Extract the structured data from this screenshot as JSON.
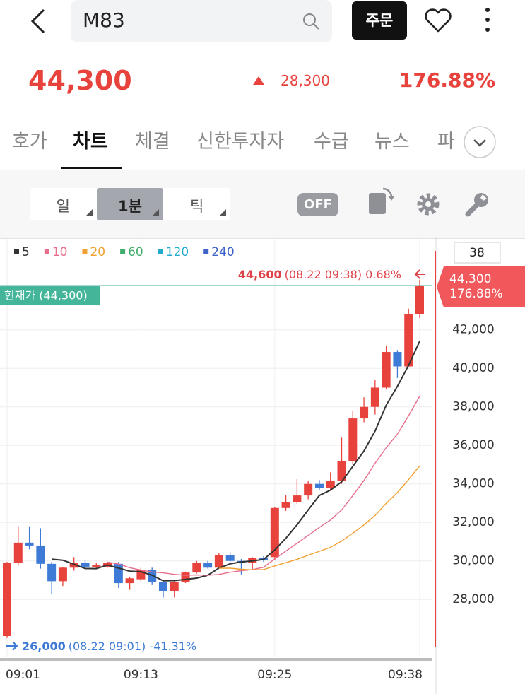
{
  "header": {
    "search": "M83",
    "order_button": "주문"
  },
  "quote": {
    "price": "44,300",
    "change": "28,300",
    "change_pct": "176.88%"
  },
  "tabs": [
    {
      "label": "호가"
    },
    {
      "label": "차트",
      "active": true
    },
    {
      "label": "체결"
    },
    {
      "label": "신한투자자"
    },
    {
      "label": "수급"
    },
    {
      "label": "뉴스"
    },
    {
      "label": "파"
    }
  ],
  "periods": [
    {
      "label": "일"
    },
    {
      "label": "1분",
      "active": true
    },
    {
      "label": "틱"
    }
  ],
  "indicator_toggle": "OFF",
  "chart_data": {
    "type": "candlestick",
    "categories": [
      "09:01",
      null,
      null,
      null,
      null,
      null,
      null,
      null,
      null,
      null,
      null,
      null,
      "09:13",
      null,
      null,
      null,
      null,
      null,
      null,
      null,
      null,
      null,
      null,
      null,
      "09:25",
      null,
      null,
      null,
      null,
      null,
      null,
      null,
      null,
      null,
      null,
      null,
      null,
      "09:38"
    ],
    "candles": {
      "open": [
        26100,
        29900,
        30950,
        30800,
        29850,
        28950,
        29650,
        29900,
        29700,
        29700,
        29850,
        28850,
        29050,
        29550,
        28900,
        28450,
        28900,
        29400,
        29900,
        29650,
        30300,
        30000,
        29900,
        30150,
        30200,
        32750,
        33050,
        33400,
        34000,
        33800,
        34150,
        35200,
        37400,
        38000,
        39000,
        40850,
        40100,
        42800
      ],
      "high": [
        29950,
        31800,
        31800,
        31700,
        29950,
        29700,
        30200,
        30050,
        29900,
        29950,
        29950,
        29150,
        29650,
        29650,
        28950,
        28950,
        29450,
        30000,
        30000,
        30400,
        30450,
        30100,
        30200,
        30250,
        32800,
        33400,
        34250,
        34150,
        34200,
        34600,
        36400,
        37800,
        38500,
        39400,
        41150,
        40950,
        43100,
        44600
      ],
      "low": [
        26000,
        29750,
        30600,
        29600,
        28300,
        28700,
        29500,
        29550,
        29600,
        29650,
        28600,
        28500,
        28950,
        28750,
        28100,
        28100,
        28850,
        29350,
        29600,
        29600,
        29950,
        29300,
        29550,
        29950,
        30050,
        32600,
        32950,
        33200,
        33700,
        33700,
        34000,
        35000,
        37200,
        37600,
        38900,
        39500,
        40050,
        42600
      ],
      "close": [
        29900,
        30950,
        30800,
        29850,
        28950,
        29650,
        29900,
        29700,
        29800,
        29900,
        28850,
        29100,
        29550,
        28900,
        28450,
        28900,
        29400,
        29900,
        29650,
        30300,
        30000,
        29900,
        30150,
        30050,
        32750,
        33050,
        33400,
        34000,
        33800,
        34150,
        35200,
        37400,
        38000,
        39000,
        40850,
        40100,
        42800,
        44300
      ]
    },
    "up_color": "#e8423c",
    "down_color": "#3d7bd6",
    "series": [
      {
        "name": "5",
        "color": "#333333",
        "values": [
          null,
          null,
          null,
          null,
          30090,
          30040,
          29830,
          29610,
          29600,
          29790,
          29630,
          29470,
          29440,
          29260,
          28970,
          28980,
          29040,
          29110,
          29260,
          29630,
          29850,
          29950,
          30000,
          30080,
          30570,
          31180,
          31880,
          32650,
          33400,
          33680,
          34110,
          34910,
          35710,
          36750,
          38090,
          39070,
          40150,
          41410
        ]
      },
      {
        "name": "10",
        "color": "#e86f8c",
        "values": [
          null,
          null,
          null,
          null,
          null,
          null,
          null,
          null,
          null,
          29940,
          29835,
          29650,
          29525,
          29430,
          29380,
          29305,
          29255,
          29275,
          29260,
          29300,
          29415,
          29495,
          29555,
          29670,
          30100,
          30515,
          30915,
          31325,
          31740,
          32125,
          32645,
          33395,
          34180,
          35075,
          35885,
          36590,
          37530,
          38560
        ]
      },
      {
        "name": "20",
        "color": "#f0a030",
        "values": [
          null,
          null,
          null,
          null,
          null,
          null,
          null,
          null,
          null,
          null,
          null,
          null,
          null,
          null,
          null,
          null,
          null,
          null,
          null,
          29620,
          29625,
          29570,
          29540,
          29550,
          29740,
          29910,
          30085,
          30300,
          30500,
          30710,
          31030,
          31445,
          31870,
          32370,
          32990,
          33550,
          34220,
          34940
        ]
      },
      {
        "name": "60",
        "color": "#3fae6a",
        "values": [
          null,
          null,
          null,
          null,
          null,
          null,
          null,
          null,
          null,
          null,
          null,
          null,
          null,
          null,
          null,
          null,
          null,
          null,
          null,
          null,
          null,
          null,
          null,
          null,
          null,
          null,
          null,
          null,
          null,
          null,
          null,
          null,
          null,
          null,
          null,
          null,
          null,
          null
        ]
      },
      {
        "name": "120",
        "color": "#22aacc",
        "values": [
          null,
          null,
          null,
          null,
          null,
          null,
          null,
          null,
          null,
          null,
          null,
          null,
          null,
          null,
          null,
          null,
          null,
          null,
          null,
          null,
          null,
          null,
          null,
          null,
          null,
          null,
          null,
          null,
          null,
          null,
          null,
          null,
          null,
          null,
          null,
          null,
          null,
          null
        ]
      },
      {
        "name": "240",
        "color": "#3f62c8",
        "values": [
          null,
          null,
          null,
          null,
          null,
          null,
          null,
          null,
          null,
          null,
          null,
          null,
          null,
          null,
          null,
          null,
          null,
          null,
          null,
          null,
          null,
          null,
          null,
          null,
          null,
          null,
          null,
          null,
          null,
          null,
          null,
          null,
          null,
          null,
          null,
          null,
          null,
          null
        ]
      }
    ],
    "ylim": [
      25000,
      46650
    ],
    "yticks": [
      {
        "value": 28000,
        "label": "28,000"
      },
      {
        "value": 30000,
        "label": "30,000"
      },
      {
        "value": 32000,
        "label": "32,000"
      },
      {
        "value": 34000,
        "label": "34,000"
      },
      {
        "value": 36000,
        "label": "36,000"
      },
      {
        "value": 38000,
        "label": "38,000"
      },
      {
        "value": 40000,
        "label": "40,000"
      },
      {
        "value": 42000,
        "label": "42,000"
      }
    ],
    "grid": true,
    "count_label": "38",
    "high_annotation": {
      "price": "44,600",
      "detail": "(08.22 09:38) 0.68%"
    },
    "low_annotation": {
      "price": "26,000",
      "detail": "(08.22 09:01) -41.31%"
    },
    "current_price": {
      "value": 44300,
      "label": "현재가 (44,300)"
    }
  }
}
